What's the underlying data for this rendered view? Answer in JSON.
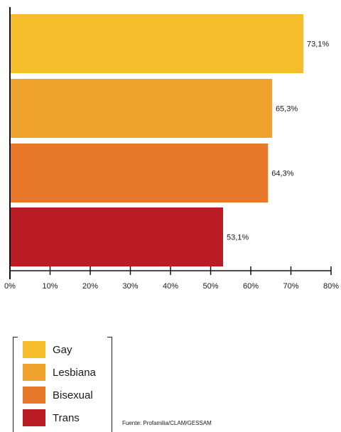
{
  "chart_data": {
    "type": "bar",
    "orientation": "horizontal",
    "categories": [
      "Gay",
      "Lesbiana",
      "Bisexual",
      "Trans"
    ],
    "values": [
      73.1,
      65.3,
      64.3,
      53.1
    ],
    "value_labels": [
      "73,1%",
      "65,3%",
      "64,3%",
      "53,1%"
    ],
    "colors": [
      "#f5bd2a",
      "#f0a22e",
      "#e9792a",
      "#b91c24"
    ],
    "xlim": [
      0,
      80
    ],
    "x_ticks": [
      0,
      10,
      20,
      30,
      40,
      50,
      60,
      70,
      80
    ],
    "x_tick_labels": [
      "0%",
      "10%",
      "20%",
      "30%",
      "40%",
      "50%",
      "60%",
      "70%",
      "80%"
    ],
    "grid": false,
    "legend_position": "bottom-left"
  },
  "legend": {
    "items": [
      {
        "label": "Gay",
        "color": "#f5bd2a"
      },
      {
        "label": "Lesbiana",
        "color": "#f0a22e"
      },
      {
        "label": "Bisexual",
        "color": "#e9792a"
      },
      {
        "label": "Trans",
        "color": "#b91c24"
      }
    ]
  },
  "source": "Fuente: Profamilia/CLAM/GESSAM"
}
